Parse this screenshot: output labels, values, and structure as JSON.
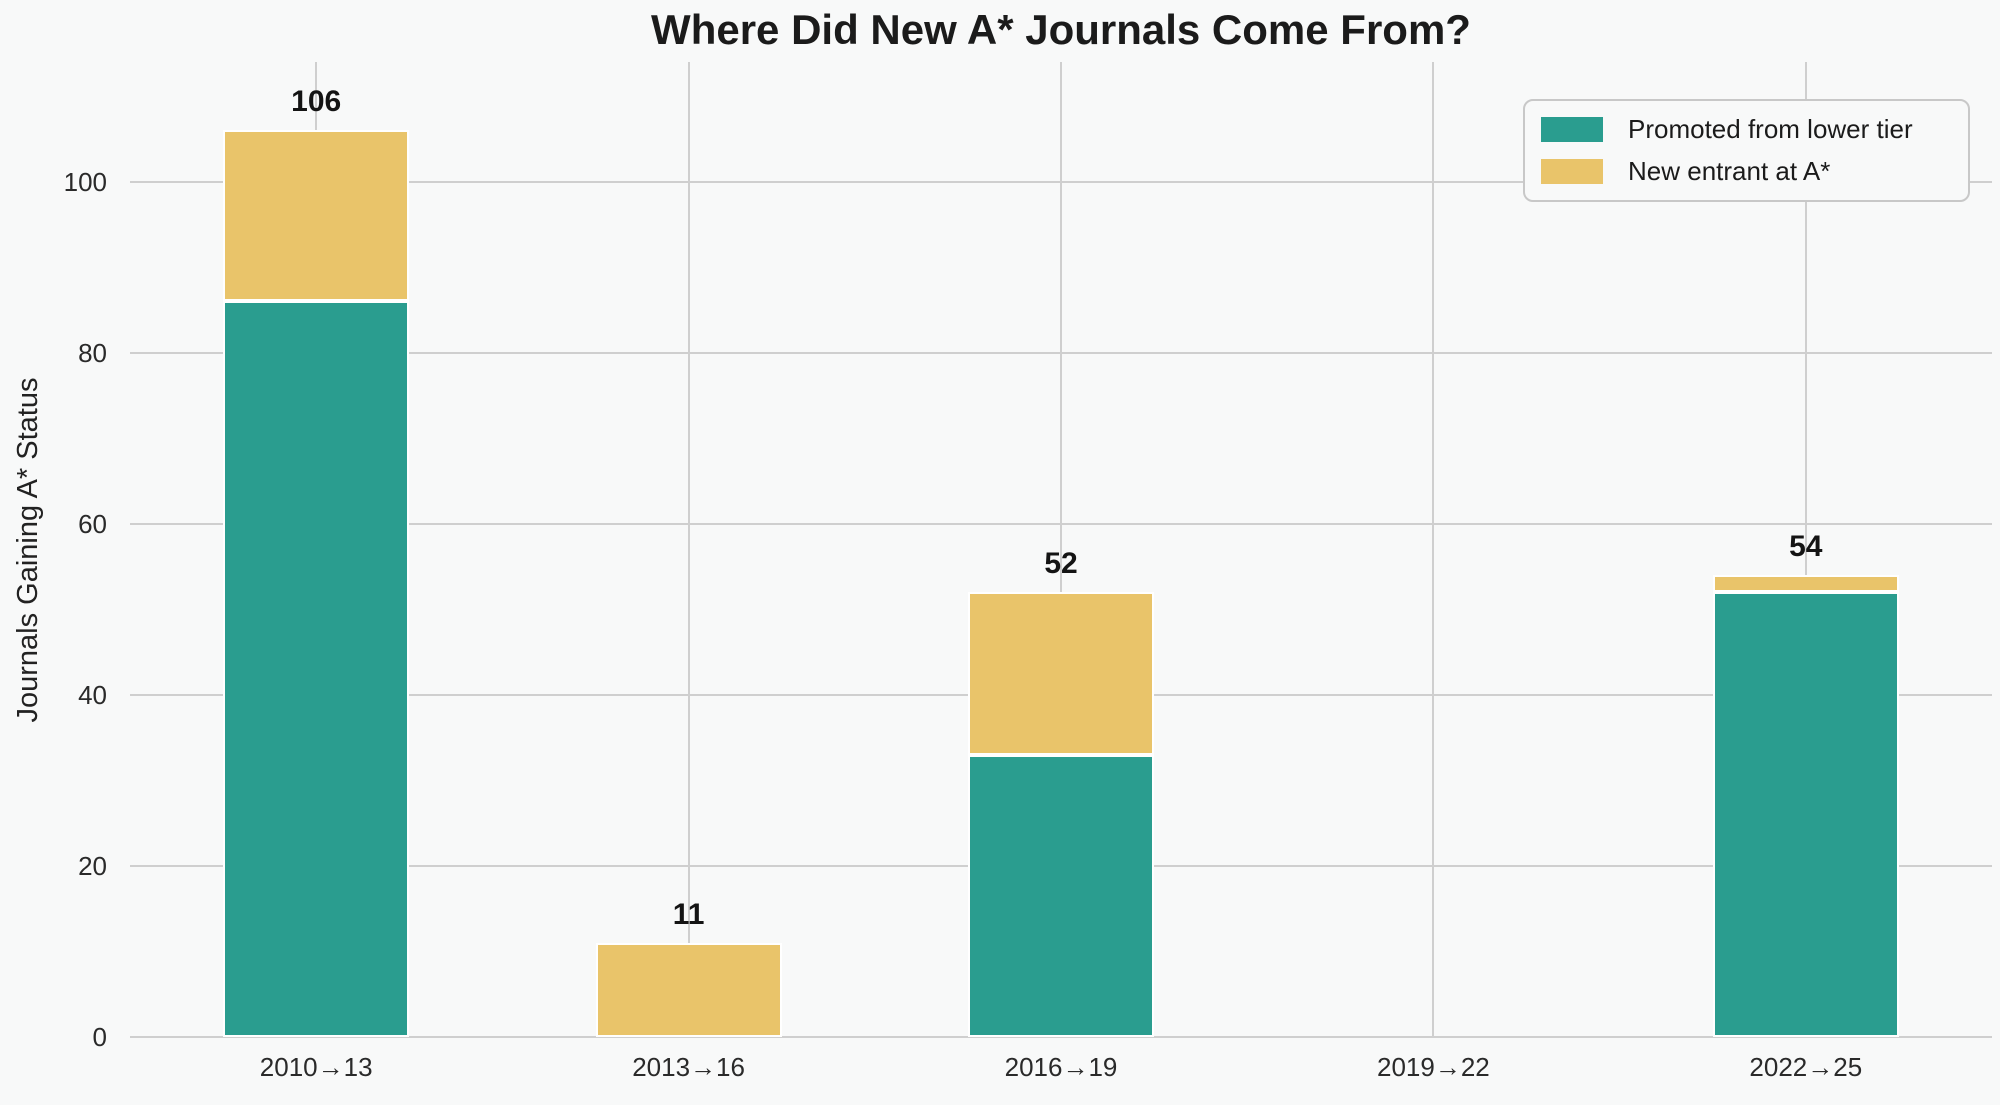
{
  "chart_data": {
    "type": "bar",
    "stacked": true,
    "title": "Where Did New A* Journals Come From?",
    "xlabel": "",
    "ylabel": "Journals Gaining A* Status",
    "categories": [
      "2010→13",
      "2013→16",
      "2016→19",
      "2019→22",
      "2022→25"
    ],
    "series": [
      {
        "name": "Promoted from lower tier",
        "color": "#2a9d8f",
        "values": [
          86,
          0,
          33,
          0,
          52
        ]
      },
      {
        "name": "New entrant at A*",
        "color": "#e9c46a",
        "values": [
          20,
          11,
          19,
          0,
          2
        ]
      }
    ],
    "totals": [
      106,
      11,
      52,
      0,
      54
    ],
    "total_labels": [
      "106",
      "11",
      "52",
      "",
      "54"
    ],
    "yticks": [
      0,
      20,
      40,
      60,
      80,
      100
    ],
    "ylim": [
      0,
      114
    ],
    "grid": true,
    "legend_position": "upper right"
  },
  "colors": {
    "background": "#f8f9f9",
    "grid": "#cfcfcf",
    "bar_edge": "#ffffff",
    "title_text": "#1b1b1b",
    "tick_text": "#2a2a2a"
  }
}
